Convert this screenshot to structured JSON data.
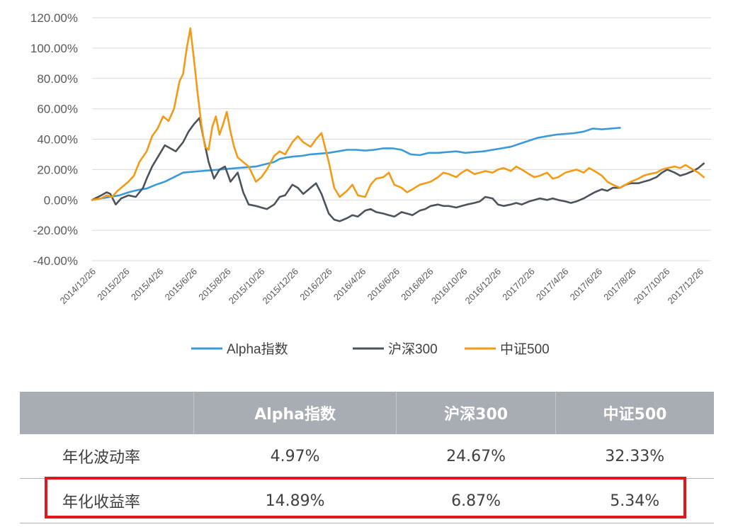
{
  "chart_data": {
    "type": "line",
    "title": "",
    "xlabel": "",
    "ylabel": "",
    "ylim": [
      -40,
      120
    ],
    "yticks": [
      "120.00%",
      "100.00%",
      "80.00%",
      "60.00%",
      "40.00%",
      "20.00%",
      "0.00%",
      "-20.00%",
      "-40.00%"
    ],
    "xticks": [
      "2014/12/26",
      "2015/2/26",
      "2015/4/26",
      "2015/6/26",
      "2015/8/26",
      "2015/10/26",
      "2015/12/26",
      "2016/2/26",
      "2016/4/26",
      "2016/6/26",
      "2016/8/26",
      "2016/10/26",
      "2016/12/26",
      "2017/2/26",
      "2017/4/26",
      "2017/6/26",
      "2017/8/26",
      "2017/10/26",
      "2017/12/26"
    ],
    "grid": "horizontal",
    "legend_position": "bottom",
    "series": [
      {
        "name": "Alpha指数",
        "color": "#3a9ad9",
        "points": [
          [
            0,
            0
          ],
          [
            0.5,
            1
          ],
          [
            1,
            2
          ],
          [
            1.5,
            3
          ],
          [
            2,
            5
          ],
          [
            2.5,
            6.5
          ],
          [
            3,
            7.5
          ],
          [
            3.5,
            10
          ],
          [
            4,
            12
          ],
          [
            4.5,
            15
          ],
          [
            5,
            18
          ],
          [
            5.5,
            18.5
          ],
          [
            6,
            19
          ],
          [
            6.5,
            19.5
          ],
          [
            7,
            20
          ],
          [
            7.5,
            20.5
          ],
          [
            8,
            21
          ],
          [
            8.5,
            21.5
          ],
          [
            9,
            22
          ],
          [
            9.5,
            23.5
          ],
          [
            10,
            25
          ],
          [
            10.3,
            27
          ],
          [
            10.7,
            28
          ],
          [
            11,
            28.5
          ],
          [
            11.5,
            29
          ],
          [
            12,
            30
          ],
          [
            12.5,
            30.5
          ],
          [
            13,
            31
          ],
          [
            13.5,
            32
          ],
          [
            14,
            33
          ],
          [
            14.5,
            33
          ],
          [
            15,
            32.5
          ],
          [
            15.5,
            33
          ],
          [
            16,
            34
          ],
          [
            16.5,
            34
          ],
          [
            17,
            33
          ],
          [
            17.5,
            30
          ],
          [
            18,
            29.5
          ],
          [
            18.5,
            31
          ],
          [
            19,
            31
          ],
          [
            19.5,
            31.5
          ],
          [
            20,
            32
          ],
          [
            20.5,
            31
          ],
          [
            21,
            31.5
          ],
          [
            21.5,
            32
          ],
          [
            22,
            33
          ],
          [
            22.5,
            34
          ],
          [
            23,
            35
          ],
          [
            23.5,
            37
          ],
          [
            24,
            39
          ],
          [
            24.5,
            41
          ],
          [
            25,
            42
          ],
          [
            25.5,
            43
          ],
          [
            26,
            43.5
          ],
          [
            26.5,
            44
          ],
          [
            27,
            45
          ],
          [
            27.5,
            47
          ],
          [
            28,
            46.5
          ],
          [
            28.5,
            47
          ],
          [
            29,
            47.5
          ]
        ]
      },
      {
        "name": "沪深300",
        "color": "#4c535b",
        "points": [
          [
            0,
            0
          ],
          [
            0.5,
            3
          ],
          [
            0.8,
            5
          ],
          [
            1,
            4
          ],
          [
            1.3,
            -3
          ],
          [
            1.6,
            1
          ],
          [
            2,
            3
          ],
          [
            2.4,
            2
          ],
          [
            2.8,
            8
          ],
          [
            3,
            14
          ],
          [
            3.3,
            22
          ],
          [
            3.7,
            30
          ],
          [
            4,
            36
          ],
          [
            4.3,
            34
          ],
          [
            4.6,
            32
          ],
          [
            5,
            38
          ],
          [
            5.3,
            45
          ],
          [
            5.6,
            50
          ],
          [
            5.9,
            54
          ],
          [
            6.1,
            42
          ],
          [
            6.4,
            25
          ],
          [
            6.7,
            14
          ],
          [
            7,
            20
          ],
          [
            7.3,
            22
          ],
          [
            7.6,
            12
          ],
          [
            8,
            18
          ],
          [
            8.3,
            5
          ],
          [
            8.6,
            -3
          ],
          [
            9,
            -4
          ],
          [
            9.3,
            -5
          ],
          [
            9.6,
            -6
          ],
          [
            10,
            -3
          ],
          [
            10.3,
            2
          ],
          [
            10.6,
            3
          ],
          [
            11,
            10
          ],
          [
            11.3,
            8
          ],
          [
            11.6,
            4
          ],
          [
            12,
            8
          ],
          [
            12.3,
            11
          ],
          [
            12.6,
            4
          ],
          [
            13,
            -9
          ],
          [
            13.3,
            -13
          ],
          [
            13.6,
            -14
          ],
          [
            14,
            -12
          ],
          [
            14.3,
            -10
          ],
          [
            14.6,
            -11
          ],
          [
            15,
            -7
          ],
          [
            15.3,
            -6
          ],
          [
            15.6,
            -8
          ],
          [
            16,
            -9
          ],
          [
            16.3,
            -10
          ],
          [
            16.6,
            -11
          ],
          [
            17,
            -8
          ],
          [
            17.3,
            -9
          ],
          [
            17.6,
            -10
          ],
          [
            18,
            -7
          ],
          [
            18.3,
            -6
          ],
          [
            18.6,
            -4
          ],
          [
            19,
            -3
          ],
          [
            19.3,
            -4
          ],
          [
            19.6,
            -4
          ],
          [
            20,
            -5
          ],
          [
            20.3,
            -4
          ],
          [
            20.6,
            -3
          ],
          [
            21,
            -2
          ],
          [
            21.3,
            -1
          ],
          [
            21.6,
            2
          ],
          [
            22,
            1
          ],
          [
            22.3,
            -3
          ],
          [
            22.6,
            -4
          ],
          [
            23,
            -3
          ],
          [
            23.3,
            -2
          ],
          [
            23.6,
            -3
          ],
          [
            24,
            -1
          ],
          [
            24.3,
            0
          ],
          [
            24.6,
            1
          ],
          [
            25,
            0
          ],
          [
            25.3,
            1
          ],
          [
            25.6,
            0
          ],
          [
            26,
            -1
          ],
          [
            26.3,
            -2
          ],
          [
            26.6,
            -1
          ],
          [
            27,
            1
          ],
          [
            27.3,
            3
          ],
          [
            27.6,
            5
          ],
          [
            28,
            7
          ],
          [
            28.3,
            6
          ],
          [
            28.6,
            8
          ],
          [
            29,
            8
          ],
          [
            29.3,
            10
          ],
          [
            29.6,
            11
          ],
          [
            30,
            11
          ],
          [
            30.3,
            12
          ],
          [
            30.6,
            13
          ],
          [
            31,
            15
          ],
          [
            31.3,
            18
          ],
          [
            31.6,
            20
          ],
          [
            32,
            18
          ],
          [
            32.3,
            16
          ],
          [
            32.6,
            17
          ],
          [
            33,
            19
          ],
          [
            33.3,
            21
          ],
          [
            33.6,
            24
          ]
        ]
      },
      {
        "name": "中证500",
        "color": "#f39a16",
        "points": [
          [
            0,
            0
          ],
          [
            0.5,
            1
          ],
          [
            0.8,
            3
          ],
          [
            1.1,
            2
          ],
          [
            1.4,
            6
          ],
          [
            1.7,
            9
          ],
          [
            2,
            12
          ],
          [
            2.3,
            16
          ],
          [
            2.6,
            25
          ],
          [
            3,
            32
          ],
          [
            3.3,
            42
          ],
          [
            3.6,
            47
          ],
          [
            3.9,
            55
          ],
          [
            4.2,
            52
          ],
          [
            4.5,
            60
          ],
          [
            4.8,
            78
          ],
          [
            5,
            83
          ],
          [
            5.2,
            100
          ],
          [
            5.4,
            113
          ],
          [
            5.6,
            92
          ],
          [
            5.8,
            70
          ],
          [
            6,
            50
          ],
          [
            6.2,
            35
          ],
          [
            6.4,
            33
          ],
          [
            6.6,
            48
          ],
          [
            6.8,
            55
          ],
          [
            7,
            43
          ],
          [
            7.2,
            50
          ],
          [
            7.4,
            58
          ],
          [
            7.6,
            45
          ],
          [
            7.8,
            35
          ],
          [
            8,
            28
          ],
          [
            8.3,
            25
          ],
          [
            8.6,
            22
          ],
          [
            9,
            12
          ],
          [
            9.3,
            15
          ],
          [
            9.6,
            20
          ],
          [
            10,
            29
          ],
          [
            10.3,
            32
          ],
          [
            10.6,
            30
          ],
          [
            11,
            38
          ],
          [
            11.3,
            42
          ],
          [
            11.6,
            38
          ],
          [
            12,
            35
          ],
          [
            12.3,
            40
          ],
          [
            12.6,
            44
          ],
          [
            13,
            25
          ],
          [
            13.3,
            8
          ],
          [
            13.6,
            2
          ],
          [
            14,
            6
          ],
          [
            14.3,
            10
          ],
          [
            14.6,
            3
          ],
          [
            15,
            2
          ],
          [
            15.3,
            10
          ],
          [
            15.6,
            14
          ],
          [
            16,
            15
          ],
          [
            16.3,
            18
          ],
          [
            16.6,
            10
          ],
          [
            17,
            8
          ],
          [
            17.3,
            5
          ],
          [
            17.6,
            7
          ],
          [
            18,
            10
          ],
          [
            18.3,
            11
          ],
          [
            18.6,
            12
          ],
          [
            19,
            15
          ],
          [
            19.3,
            18
          ],
          [
            19.6,
            17
          ],
          [
            20,
            15
          ],
          [
            20.3,
            18
          ],
          [
            20.6,
            20
          ],
          [
            21,
            17
          ],
          [
            21.3,
            18
          ],
          [
            21.6,
            19
          ],
          [
            22,
            18
          ],
          [
            22.3,
            20
          ],
          [
            22.6,
            21
          ],
          [
            23,
            19
          ],
          [
            23.3,
            22
          ],
          [
            23.6,
            20
          ],
          [
            24,
            17
          ],
          [
            24.3,
            15
          ],
          [
            24.6,
            16
          ],
          [
            25,
            18
          ],
          [
            25.3,
            14
          ],
          [
            25.6,
            15
          ],
          [
            26,
            18
          ],
          [
            26.3,
            19
          ],
          [
            26.6,
            20
          ],
          [
            27,
            18
          ],
          [
            27.3,
            21
          ],
          [
            27.6,
            19
          ],
          [
            28,
            16
          ],
          [
            28.3,
            12
          ],
          [
            28.6,
            10
          ],
          [
            29,
            8
          ],
          [
            29.3,
            10
          ],
          [
            29.6,
            12
          ],
          [
            30,
            14
          ],
          [
            30.3,
            16
          ],
          [
            30.6,
            17
          ],
          [
            31,
            18
          ],
          [
            31.3,
            20
          ],
          [
            31.6,
            21
          ],
          [
            32,
            22
          ],
          [
            32.3,
            21
          ],
          [
            32.6,
            23
          ],
          [
            33,
            20
          ],
          [
            33.3,
            18
          ],
          [
            33.6,
            15
          ]
        ]
      }
    ]
  },
  "legend": [
    {
      "label": "Alpha指数",
      "color": "#3a9ad9"
    },
    {
      "label": "沪深300",
      "color": "#4c535b"
    },
    {
      "label": "中证500",
      "color": "#f39a16"
    }
  ],
  "table": {
    "headers": [
      "",
      "Alpha指数",
      "沪深300",
      "中证500"
    ],
    "rows": [
      {
        "label": "年化波动率",
        "values": [
          "4.97%",
          "24.67%",
          "32.33%"
        ]
      },
      {
        "label": "年化收益率",
        "values": [
          "14.89%",
          "6.87%",
          "5.34%"
        ]
      }
    ],
    "highlight_color": "#e3161d"
  }
}
